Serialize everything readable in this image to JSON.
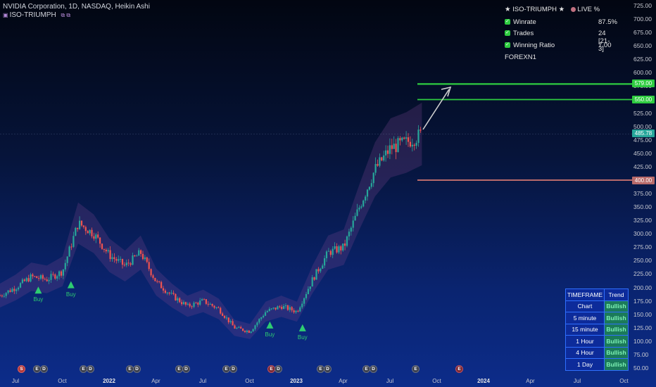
{
  "header": {
    "symbol_line": "NVIDIA Corporation, 1D, NASDAQ, Heikin Ashi",
    "indicator": "ISO-TRIUMPH",
    "indicator_icons": "⧉ ⧉"
  },
  "stats_panel": {
    "title": "★ ISO-TRIUMPH ★",
    "live_label": "LIVE %",
    "rows": [
      {
        "label": "Winrate",
        "value": "87.5%"
      },
      {
        "label": "Trades",
        "value": "24 [21-3]"
      },
      {
        "label": "Winning Ratio",
        "value": "7.00"
      }
    ],
    "footer": "FOREXN1"
  },
  "price_tags": {
    "tp1": "579.00",
    "tp2": "550.00",
    "last": "485.78",
    "stop": "400.00"
  },
  "colors": {
    "bull": "#26a69a",
    "bear": "#ef5350",
    "target_line": "#2ecc40",
    "stop_line": "#b86a6a",
    "last_tag": "#26a69a"
  },
  "timeframe_table": {
    "header": [
      "TIMEFRAME",
      "Trend"
    ],
    "rows": [
      {
        "tf": "Chart",
        "trend": "Bullish"
      },
      {
        "tf": "5 minute",
        "trend": "Bullish"
      },
      {
        "tf": "15 minute",
        "trend": "Bullish"
      },
      {
        "tf": "1 Hour",
        "trend": "Bullish"
      },
      {
        "tf": "4 Hour",
        "trend": "Bullish"
      },
      {
        "tf": "1 Day",
        "trend": "Bullish"
      }
    ]
  },
  "chart_data": {
    "type": "line",
    "title": "NVIDIA Corporation, 1D, NASDAQ, Heikin Ashi",
    "x_ticks": [
      "Jul",
      "Oct",
      "2022",
      "Apr",
      "Jul",
      "Oct",
      "2023",
      "Apr",
      "Jul",
      "Oct",
      "2024",
      "Apr",
      "Jul",
      "Oct"
    ],
    "y_ticks": [
      "725.00",
      "700.00",
      "675.00",
      "650.00",
      "625.00",
      "600.00",
      "575.00",
      "550.00",
      "525.00",
      "500.00",
      "475.00",
      "450.00",
      "425.00",
      "400.00",
      "375.00",
      "350.00",
      "325.00",
      "300.00",
      "275.00",
      "250.00",
      "225.00",
      "200.00",
      "175.00",
      "150.00",
      "125.00",
      "100.00",
      "75.00",
      "50.00"
    ],
    "ylim": [
      50,
      725
    ],
    "x": [
      "2021-06",
      "2021-07",
      "2021-08",
      "2021-09",
      "2021-10",
      "2021-11",
      "2021-12",
      "2022-01",
      "2022-02",
      "2022-03",
      "2022-04",
      "2022-05",
      "2022-06",
      "2022-07",
      "2022-08",
      "2022-09",
      "2022-10",
      "2022-11",
      "2022-12",
      "2023-01",
      "2023-02",
      "2023-03",
      "2023-04",
      "2023-05",
      "2023-06",
      "2023-07",
      "2023-08",
      "2023-09"
    ],
    "series": [
      {
        "values": [
          185,
          200,
          220,
          215,
          230,
          320,
          300,
          260,
          240,
          265,
          210,
          185,
          165,
          175,
          160,
          125,
          118,
          155,
          165,
          155,
          215,
          265,
          275,
          350,
          420,
          460,
          470,
          486
        ]
      }
    ],
    "buy_signals": [
      {
        "x": "2021-08",
        "label": "Buy"
      },
      {
        "x": "2021-10",
        "label": "Buy"
      },
      {
        "x": "2022-11",
        "label": "Buy"
      },
      {
        "x": "2023-01",
        "label": "Buy"
      }
    ],
    "levels": {
      "tp1": 579,
      "tp2": 550,
      "last": 485.78,
      "stop": 400
    }
  },
  "events": [
    {
      "type": "s",
      "glyph": "S"
    },
    {
      "type": "e",
      "glyph": "E"
    },
    {
      "type": "d",
      "glyph": "D"
    },
    {
      "type": "e",
      "glyph": "E"
    },
    {
      "type": "d",
      "glyph": "D"
    },
    {
      "type": "e",
      "glyph": "E"
    },
    {
      "type": "d",
      "glyph": "D"
    },
    {
      "type": "e",
      "glyph": "E"
    },
    {
      "type": "d",
      "glyph": "D"
    },
    {
      "type": "e",
      "glyph": "E"
    },
    {
      "type": "d",
      "glyph": "D"
    },
    {
      "type": "er",
      "glyph": "E"
    },
    {
      "type": "d",
      "glyph": "D"
    },
    {
      "type": "e",
      "glyph": "E"
    },
    {
      "type": "d",
      "glyph": "D"
    },
    {
      "type": "e",
      "glyph": "E"
    },
    {
      "type": "d",
      "glyph": "D"
    },
    {
      "type": "e",
      "glyph": "E"
    },
    {
      "type": "er",
      "glyph": "E"
    }
  ]
}
